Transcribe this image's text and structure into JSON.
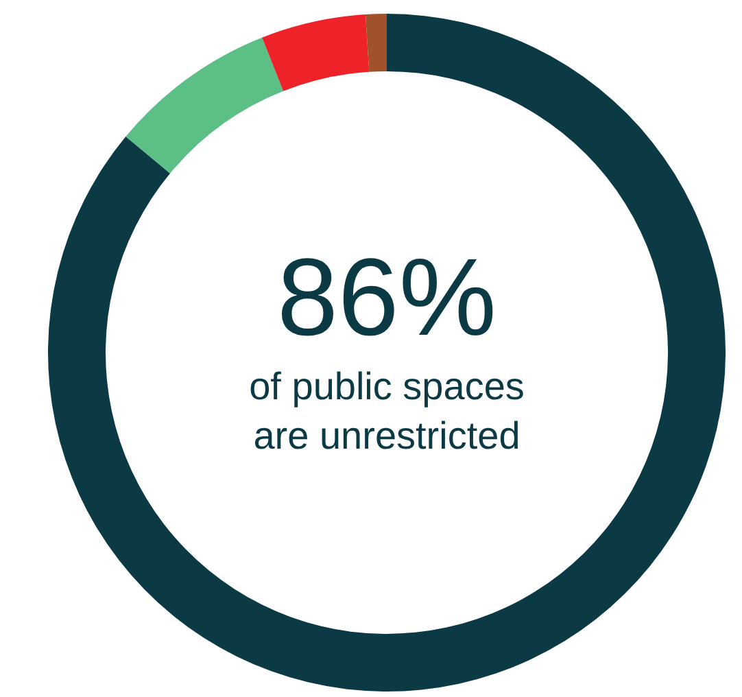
{
  "chart_data": {
    "type": "donut",
    "categories": [
      null,
      null,
      null,
      null
    ],
    "values": [
      86,
      8,
      5,
      1
    ],
    "colors": [
      "#0b3a45",
      "#5bbf86",
      "#ee2229",
      "#a0522d"
    ],
    "annotations": [
      "86%",
      "of public spaces\nare unrestricted"
    ]
  }
}
